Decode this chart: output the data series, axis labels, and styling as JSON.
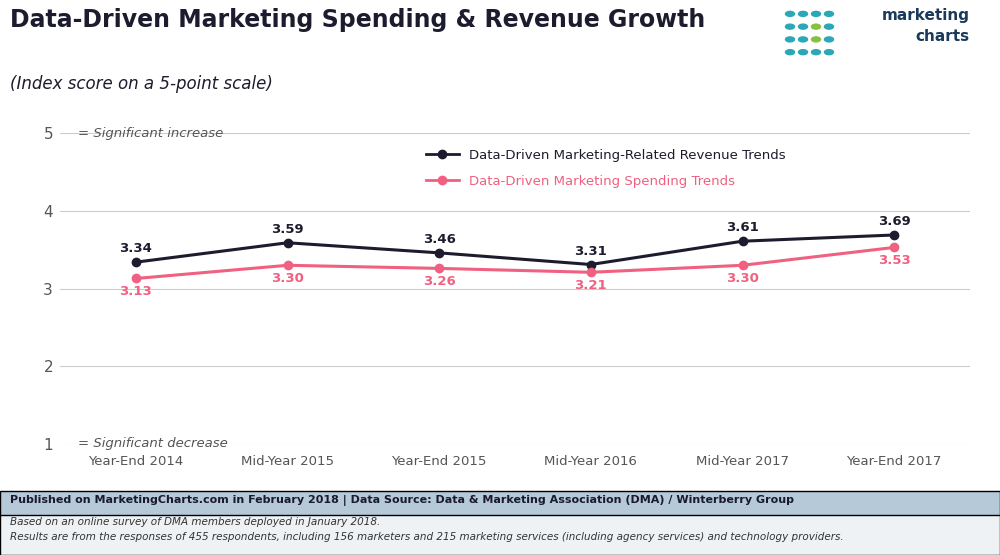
{
  "title_line1": "Data-Driven Marketing Spending & Revenue Growth",
  "title_line2": "(Index score on a 5-point scale)",
  "categories": [
    "Year-End 2014",
    "Mid-Year 2015",
    "Year-End 2015",
    "Mid-Year 2016",
    "Mid-Year 2017",
    "Year-End 2017"
  ],
  "revenue_values": [
    3.34,
    3.59,
    3.46,
    3.31,
    3.61,
    3.69
  ],
  "spending_values": [
    3.13,
    3.3,
    3.26,
    3.21,
    3.3,
    3.53
  ],
  "revenue_color": "#1c1c2e",
  "spending_color": "#f06080",
  "revenue_label": "Data-Driven Marketing-Related Revenue Trends",
  "spending_label": "Data-Driven Marketing Spending Trends",
  "ylim": [
    1,
    5
  ],
  "yticks": [
    1,
    2,
    3,
    4,
    5
  ],
  "sig_increase_text": "= Significant increase",
  "sig_decrease_text": "= Significant decrease",
  "bg_color": "#ffffff",
  "grid_color": "#cccccc",
  "footer_bg_color": "#b5c9d8",
  "footer_text1": "Published on MarketingCharts.com in February 2018 | Data Source: Data & Marketing Association (DMA) / Winterberry Group",
  "footer_text2": "Based on an online survey of DMA members deployed in January 2018.",
  "footer_text3": "Results are from the responses of 455 respondents, including 156 marketers and 215 marketing services (including agency services) and technology providers.",
  "title_color": "#1c1c2e",
  "axis_color": "#555555",
  "logo_teal": "#2aa8b8",
  "logo_green": "#88c040",
  "logo_text_color": "#1a3a5c",
  "dot_grid": [
    [
      "teal",
      "teal",
      "teal",
      "teal"
    ],
    [
      "teal",
      "teal",
      "green",
      "teal"
    ],
    [
      "teal",
      "teal",
      "green",
      "teal"
    ],
    [
      "teal",
      "teal",
      "teal",
      "teal"
    ]
  ]
}
